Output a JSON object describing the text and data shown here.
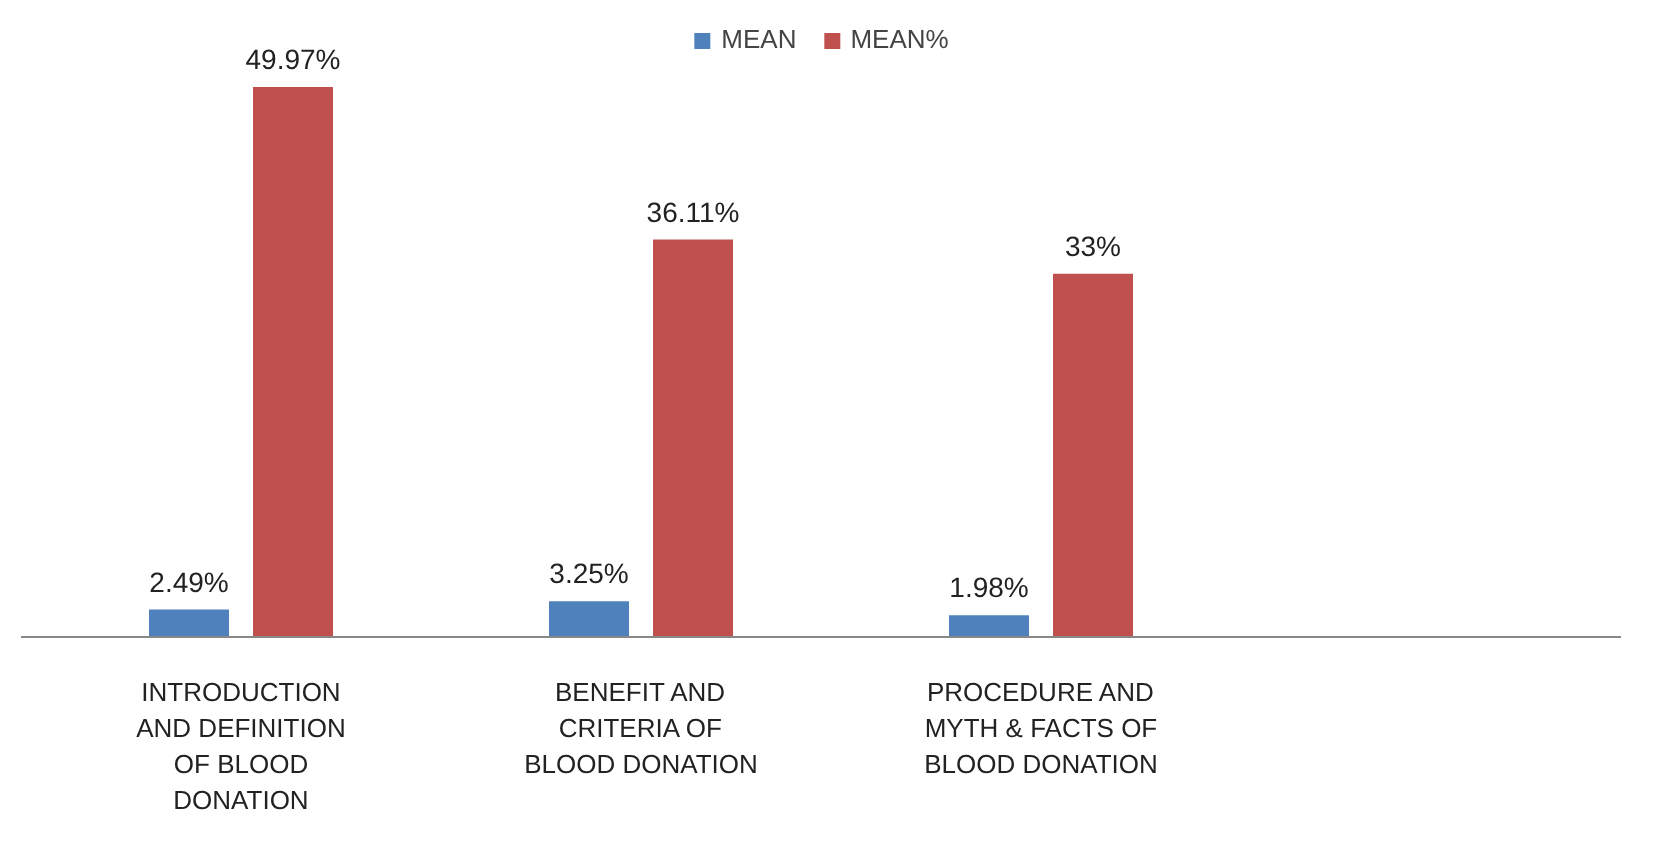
{
  "chart_data": {
    "type": "bar",
    "categories": [
      "INTRODUCTION AND DEFINITION OF BLOOD DONATION",
      "BENEFIT AND CRITERIA OF BLOOD DONATION",
      "PROCEDURE AND MYTH & FACTS OF BLOOD DONATION"
    ],
    "series": [
      {
        "name": "MEAN",
        "color": "#4f81bd",
        "values": [
          2.49,
          3.25,
          1.98
        ],
        "value_labels": [
          "2.49%",
          "3.25%",
          "1.98%"
        ]
      },
      {
        "name": "MEAN%",
        "color": "#c0504d",
        "values": [
          49.97,
          36.11,
          33
        ],
        "value_labels": [
          "49.97%",
          "36.11%",
          "33%"
        ]
      }
    ],
    "legend": "top"
  }
}
